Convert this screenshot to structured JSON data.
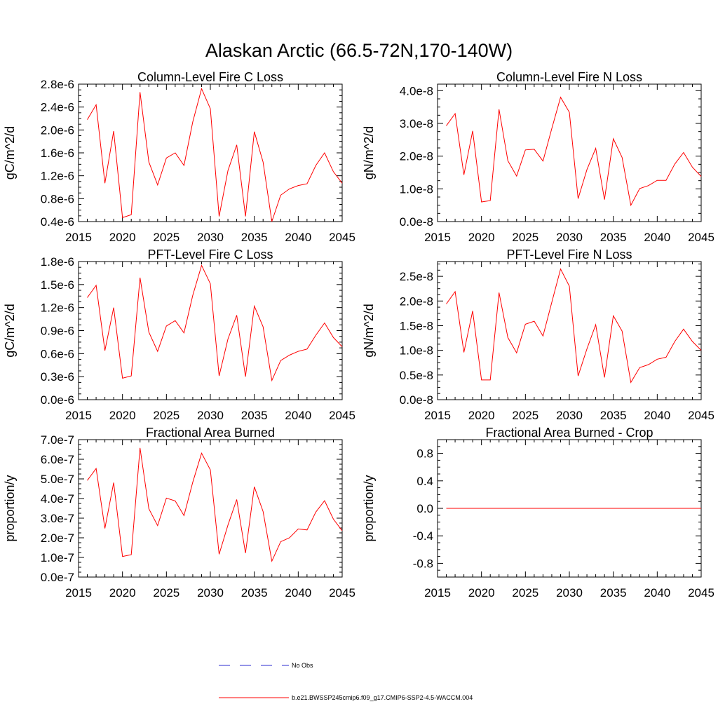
{
  "figure": {
    "title": "Alaskan Arctic (66.5-72N,170-140W)"
  },
  "colors": {
    "model_line": "#ff0000",
    "obs_line": "#2b2bd0",
    "axis": "#000000"
  },
  "legend": {
    "obs_label": "No Obs",
    "model_label": "b.e21.BWSSP245cmip6.f09_g17.CMIP6-SSP2-4.5-WACCM.004"
  },
  "chart_data": [
    {
      "type": "line",
      "title": "Column-Level Fire C Loss",
      "ylabel": "gC/m^2/d",
      "xlabel": "",
      "xlim": [
        2015,
        2045
      ],
      "ylim": [
        4e-07,
        2.8e-06
      ],
      "x_ticks": [
        2015,
        2020,
        2025,
        2030,
        2035,
        2040,
        2045
      ],
      "x_tick_labels": [
        "2015",
        "2020",
        "2025",
        "2030",
        "2035",
        "2040",
        "2045"
      ],
      "y_ticks": [
        4e-07,
        8e-07,
        1.2e-06,
        1.6e-06,
        2e-06,
        2.4e-06,
        2.8e-06
      ],
      "y_tick_labels": [
        "0.4e-6",
        "0.8e-6",
        "1.2e-6",
        "1.6e-6",
        "2.0e-6",
        "2.4e-6",
        "2.8e-6"
      ],
      "x": [
        2016,
        2017,
        2018,
        2019,
        2020,
        2021,
        2022,
        2023,
        2024,
        2025,
        2026,
        2027,
        2028,
        2029,
        2030,
        2031,
        2032,
        2033,
        2034,
        2035,
        2036,
        2037,
        2038,
        2039,
        2040,
        2041,
        2042,
        2043,
        2044,
        2045
      ],
      "series": [
        {
          "values": [
            2.18e-06,
            2.44e-06,
            1.07e-06,
            1.98e-06,
            4.7e-07,
            5.2e-07,
            2.66e-06,
            1.44e-06,
            1.04e-06,
            1.51e-06,
            1.6e-06,
            1.38e-06,
            2.14e-06,
            2.72e-06,
            2.37e-06,
            4.9e-07,
            1.29e-06,
            1.74e-06,
            4.9e-07,
            1.97e-06,
            1.44e-06,
            4e-07,
            8.6e-07,
            9.7e-07,
            1.03e-06,
            1.06e-06,
            1.38e-06,
            1.6e-06,
            1.27e-06,
            1.07e-06
          ]
        }
      ]
    },
    {
      "type": "line",
      "title": "Column-Level Fire N Loss",
      "ylabel": "gN/m^2/d",
      "xlabel": "",
      "xlim": [
        2015,
        2045
      ],
      "ylim": [
        0.0,
        4.2e-08
      ],
      "x_ticks": [
        2015,
        2020,
        2025,
        2030,
        2035,
        2040,
        2045
      ],
      "x_tick_labels": [
        "2015",
        "2020",
        "2025",
        "2030",
        "2035",
        "2040",
        "2045"
      ],
      "y_ticks": [
        0.0,
        1e-08,
        2e-08,
        3e-08,
        4e-08
      ],
      "y_tick_labels": [
        "0.0e-8",
        "1.0e-8",
        "2.0e-8",
        "3.0e-8",
        "4.0e-8"
      ],
      "x": [
        2016,
        2017,
        2018,
        2019,
        2020,
        2021,
        2022,
        2023,
        2024,
        2025,
        2026,
        2027,
        2028,
        2029,
        2030,
        2031,
        2032,
        2033,
        2034,
        2035,
        2036,
        2037,
        2038,
        2039,
        2040,
        2041,
        2042,
        2043,
        2044,
        2045
      ],
      "series": [
        {
          "values": [
            2.93e-08,
            3.3e-08,
            1.43e-08,
            2.77e-08,
            6e-09,
            6.4e-09,
            3.43e-08,
            1.86e-08,
            1.39e-08,
            2.19e-08,
            2.21e-08,
            1.85e-08,
            2.84e-08,
            3.8e-08,
            3.34e-08,
            7e-09,
            1.59e-08,
            2.24e-08,
            6.7e-09,
            2.53e-08,
            1.96e-08,
            5e-09,
            1.01e-08,
            1.1e-08,
            1.26e-08,
            1.26e-08,
            1.76e-08,
            2.11e-08,
            1.66e-08,
            1.38e-08
          ]
        }
      ]
    },
    {
      "type": "line",
      "title": "PFT-Level Fire C Loss",
      "ylabel": "gC/m^2/d",
      "xlabel": "",
      "xlim": [
        2015,
        2045
      ],
      "ylim": [
        0.0,
        1.8e-06
      ],
      "x_ticks": [
        2015,
        2020,
        2025,
        2030,
        2035,
        2040,
        2045
      ],
      "x_tick_labels": [
        "2015",
        "2020",
        "2025",
        "2030",
        "2035",
        "2040",
        "2045"
      ],
      "y_ticks": [
        0.0,
        3e-07,
        6e-07,
        9e-07,
        1.2e-06,
        1.5e-06,
        1.8e-06
      ],
      "y_tick_labels": [
        "0.0e-6",
        "0.3e-6",
        "0.6e-6",
        "0.9e-6",
        "1.2e-6",
        "1.5e-6",
        "1.8e-6"
      ],
      "x": [
        2016,
        2017,
        2018,
        2019,
        2020,
        2021,
        2022,
        2023,
        2024,
        2025,
        2026,
        2027,
        2028,
        2029,
        2030,
        2031,
        2032,
        2033,
        2034,
        2035,
        2036,
        2037,
        2038,
        2039,
        2040,
        2041,
        2042,
        2043,
        2044,
        2045
      ],
      "series": [
        {
          "values": [
            1.33e-06,
            1.49e-06,
            6.4e-07,
            1.2e-06,
            2.8e-07,
            3.1e-07,
            1.59e-06,
            8.8e-07,
            6.3e-07,
            9.6e-07,
            1.03e-06,
            8.7e-07,
            1.36e-06,
            1.75e-06,
            1.51e-06,
            3.1e-07,
            7.9e-07,
            1.1e-06,
            3e-07,
            1.22e-06,
            9.5e-07,
            2.5e-07,
            5.1e-07,
            5.8e-07,
            6.3e-07,
            6.6e-07,
            8.4e-07,
            1e-06,
            8.1e-07,
            6.9e-07
          ]
        }
      ]
    },
    {
      "type": "line",
      "title": "PFT-Level Fire N Loss",
      "ylabel": "gN/m^2/d",
      "xlabel": "",
      "xlim": [
        2015,
        2045
      ],
      "ylim": [
        0.0,
        2.8e-08
      ],
      "x_ticks": [
        2015,
        2020,
        2025,
        2030,
        2035,
        2040,
        2045
      ],
      "x_tick_labels": [
        "2015",
        "2020",
        "2025",
        "2030",
        "2035",
        "2040",
        "2045"
      ],
      "y_ticks": [
        0.0,
        5e-09,
        1e-08,
        1.5e-08,
        2e-08,
        2.5e-08
      ],
      "y_tick_labels": [
        "0.0e-8",
        "0.5e-8",
        "1.0e-8",
        "1.5e-8",
        "2.0e-8",
        "2.5e-8"
      ],
      "x": [
        2016,
        2017,
        2018,
        2019,
        2020,
        2021,
        2022,
        2023,
        2024,
        2025,
        2026,
        2027,
        2028,
        2029,
        2030,
        2031,
        2032,
        2033,
        2034,
        2035,
        2036,
        2037,
        2038,
        2039,
        2040,
        2041,
        2042,
        2043,
        2044,
        2045
      ],
      "series": [
        {
          "values": [
            1.94e-08,
            2.19e-08,
            9.6e-09,
            1.8e-08,
            4e-09,
            4e-09,
            2.17e-08,
            1.26e-08,
            9.5e-09,
            1.53e-08,
            1.59e-08,
            1.29e-08,
            1.97e-08,
            2.65e-08,
            2.3e-08,
            4.8e-09,
            1.03e-08,
            1.52e-08,
            4.5e-09,
            1.7e-08,
            1.39e-08,
            3.5e-09,
            6.5e-09,
            7.1e-09,
            8.2e-09,
            8.6e-09,
            1.18e-08,
            1.43e-08,
            1.18e-08,
            1e-08
          ]
        }
      ]
    },
    {
      "type": "line",
      "title": "Fractional Area Burned",
      "ylabel": "proportion/y",
      "xlabel": "",
      "xlim": [
        2015,
        2045
      ],
      "ylim": [
        0.0,
        7e-07
      ],
      "x_ticks": [
        2015,
        2020,
        2025,
        2030,
        2035,
        2040,
        2045
      ],
      "x_tick_labels": [
        "2015",
        "2020",
        "2025",
        "2030",
        "2035",
        "2040",
        "2045"
      ],
      "y_ticks": [
        0.0,
        1e-07,
        2e-07,
        3e-07,
        4e-07,
        5e-07,
        6e-07,
        7e-07
      ],
      "y_tick_labels": [
        "0.0e-7",
        "1.0e-7",
        "2.0e-7",
        "3.0e-7",
        "4.0e-7",
        "5.0e-7",
        "6.0e-7",
        "7.0e-7"
      ],
      "x": [
        2016,
        2017,
        2018,
        2019,
        2020,
        2021,
        2022,
        2023,
        2024,
        2025,
        2026,
        2027,
        2028,
        2029,
        2030,
        2031,
        2032,
        2033,
        2034,
        2035,
        2036,
        2037,
        2038,
        2039,
        2040,
        2041,
        2042,
        2043,
        2044,
        2045
      ],
      "series": [
        {
          "values": [
            4.92e-07,
            5.53e-07,
            2.48e-07,
            4.81e-07,
            1.05e-07,
            1.14e-07,
            6.58e-07,
            3.48e-07,
            2.62e-07,
            4.02e-07,
            3.88e-07,
            3.13e-07,
            4.83e-07,
            6.31e-07,
            5.46e-07,
            1.16e-07,
            2.65e-07,
            3.95e-07,
            1.22e-07,
            4.6e-07,
            3.34e-07,
            8.1e-08,
            1.8e-07,
            2e-07,
            2.45e-07,
            2.4e-07,
            3.31e-07,
            3.89e-07,
            2.95e-07,
            2.36e-07
          ]
        }
      ]
    },
    {
      "type": "line",
      "title": "Fractional Area Burned - Crop",
      "ylabel": "proportion/y",
      "xlabel": "",
      "xlim": [
        2015,
        2045
      ],
      "ylim": [
        -1.0,
        1.0
      ],
      "x_ticks": [
        2015,
        2020,
        2025,
        2030,
        2035,
        2040,
        2045
      ],
      "x_tick_labels": [
        "2015",
        "2020",
        "2025",
        "2030",
        "2035",
        "2040",
        "2045"
      ],
      "y_ticks": [
        -0.8,
        -0.4,
        0.0,
        0.4,
        0.8
      ],
      "y_tick_labels": [
        "-0.8",
        "-0.4",
        "0.0",
        "0.4",
        "0.8"
      ],
      "x": [
        2016,
        2017,
        2018,
        2019,
        2020,
        2021,
        2022,
        2023,
        2024,
        2025,
        2026,
        2027,
        2028,
        2029,
        2030,
        2031,
        2032,
        2033,
        2034,
        2035,
        2036,
        2037,
        2038,
        2039,
        2040,
        2041,
        2042,
        2043,
        2044,
        2045
      ],
      "series": [
        {
          "values": [
            0,
            0,
            0,
            0,
            0,
            0,
            0,
            0,
            0,
            0,
            0,
            0,
            0,
            0,
            0,
            0,
            0,
            0,
            0,
            0,
            0,
            0,
            0,
            0,
            0,
            0,
            0,
            0,
            0,
            0
          ]
        }
      ]
    }
  ]
}
